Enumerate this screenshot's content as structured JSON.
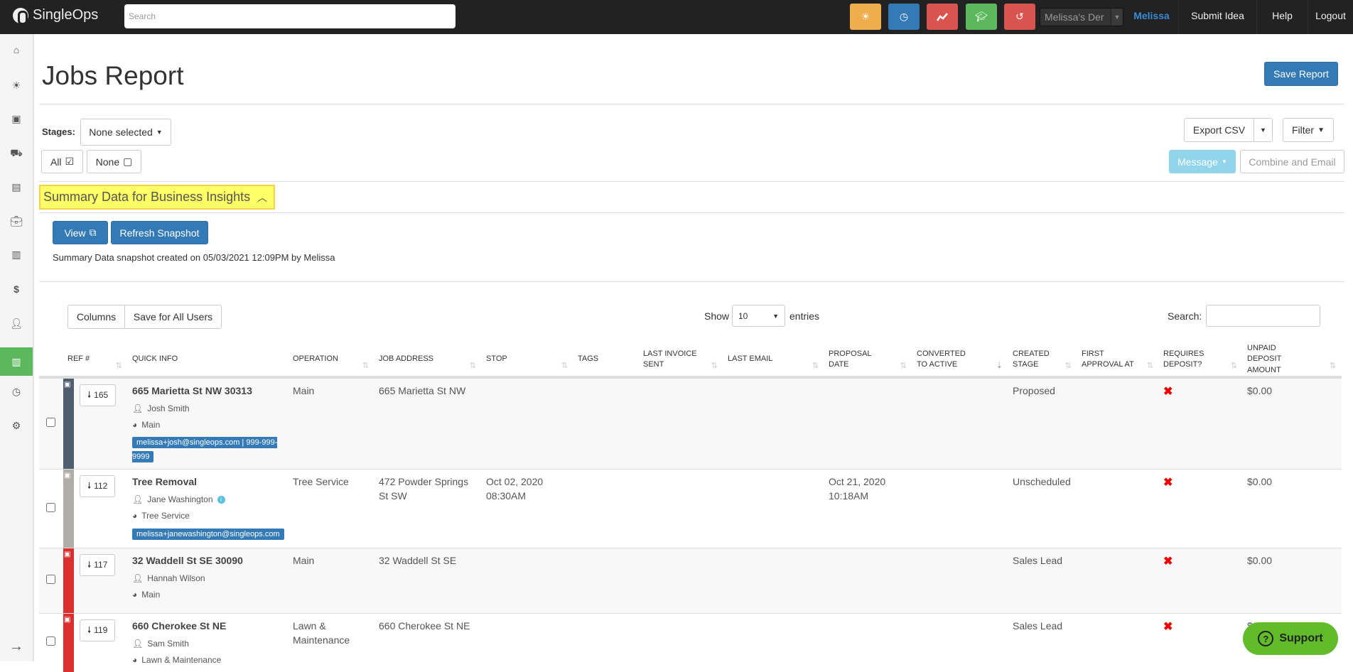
{
  "topbar": {
    "brand": "SingleOps",
    "search_placeholder": "Search",
    "dealer_select": "Melissa's Der",
    "user": "Melissa",
    "submit_idea": "Submit Idea",
    "help": "Help",
    "logout": "Logout",
    "quick_buttons": [
      {
        "icon": "sun-icon",
        "color": "#f0ad4e"
      },
      {
        "icon": "clock-icon",
        "color": "#337ab7"
      },
      {
        "icon": "chart-line-icon",
        "color": "#d9534f"
      },
      {
        "icon": "graduation-cap-icon",
        "color": "#5cb85c"
      },
      {
        "icon": "history-icon",
        "color": "#d9534f"
      }
    ]
  },
  "sidebar": {
    "items": [
      "home-icon",
      "sun-icon",
      "calendar-icon",
      "truck-icon",
      "documents-icon",
      "briefcase-icon",
      "archive-icon",
      "dollar-icon",
      "user-icon",
      "reports-icon",
      "clock-icon",
      "gear-icon"
    ],
    "active": "reports-icon",
    "collapse": "arrow-right-icon"
  },
  "page": {
    "title": "Jobs Report",
    "save_report": "Save Report",
    "stages_label": "Stages:",
    "stages_value": "None selected",
    "all": "All",
    "none": "None",
    "export_csv": "Export CSV",
    "filter": "Filter",
    "message": "Message",
    "combine_email": "Combine and Email"
  },
  "summary": {
    "heading": "Summary Data for Business Insights",
    "view": "View",
    "refresh": "Refresh Snapshot",
    "snapshot_text": "Summary Data snapshot created on 05/03/2021 12:09PM by Melissa"
  },
  "table_controls": {
    "columns": "Columns",
    "save_all": "Save for All Users",
    "show": "Show",
    "entries_value": "10",
    "entries": "entries",
    "search_label": "Search:"
  },
  "table": {
    "headers": [
      "REF #",
      "QUICK INFO",
      "OPERATION",
      "JOB ADDRESS",
      "STOP",
      "TAGS",
      "LAST INVOICE SENT",
      "LAST EMAIL",
      "PROPOSAL DATE",
      "CONVERTED TO ACTIVE",
      "CREATED STAGE",
      "FIRST APPROVAL AT",
      "REQUIRES DEPOSIT?",
      "UNPAID DEPOSIT AMOUNT"
    ],
    "rows": [
      {
        "color": "#4f5d6e",
        "ref": "165",
        "title": "665 Marietta St NW 30313",
        "contact": "Josh Smith",
        "op_line": "Main",
        "email": "melissa+josh@singleops.com | 999-999-9999",
        "operation": "Main",
        "address": "665 Marietta St NW",
        "stop": "",
        "proposal": "",
        "stage": "Proposed",
        "deposit": "✖",
        "unpaid": "$0.00"
      },
      {
        "color": "#b0aca6",
        "ref": "112",
        "title": "Tree Removal",
        "contact": "Jane Washington",
        "op_line": "Tree Service",
        "email": "melissa+janewashington@singleops.com",
        "operation": "Tree Service",
        "address": "472 Powder Springs St SW",
        "stop": "Oct 02, 2020 08:30AM",
        "proposal": "Oct 21, 2020 10:18AM",
        "stage": "Unscheduled",
        "deposit": "✖",
        "unpaid": "$0.00"
      },
      {
        "color": "#d9302f",
        "ref": "117",
        "title": "32 Waddell St SE 30090",
        "contact": "Hannah Wilson",
        "op_line": "Main",
        "email": "",
        "operation": "Main",
        "address": "32 Waddell St SE",
        "stop": "",
        "proposal": "",
        "stage": "Sales Lead",
        "deposit": "✖",
        "unpaid": "$0.00"
      },
      {
        "color": "#d9302f",
        "ref": "119",
        "title": "660 Cherokee St NE",
        "contact": "Sam Smith",
        "op_line": "Lawn & Maintenance",
        "email": "",
        "operation": "Lawn & Maintenance",
        "address": "660 Cherokee St NE",
        "stop": "",
        "proposal": "",
        "stage": "Sales Lead",
        "deposit": "✖",
        "unpaid": "$0.00"
      }
    ]
  },
  "support": "Support"
}
